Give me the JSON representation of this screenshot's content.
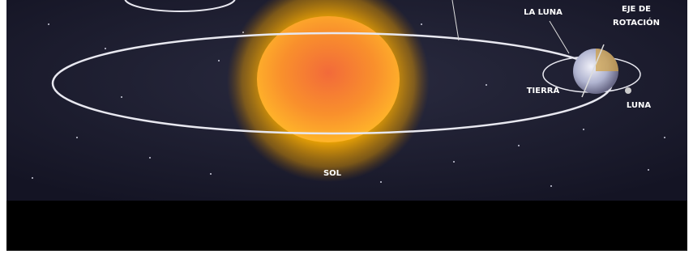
{
  "labels": {
    "la_luna": "LA LUNA",
    "eje_line1": "EJE DE",
    "eje_line2": "ROTACIÓN",
    "tierra": "TIERRA",
    "luna": "LUNA",
    "sol": "SOL"
  }
}
